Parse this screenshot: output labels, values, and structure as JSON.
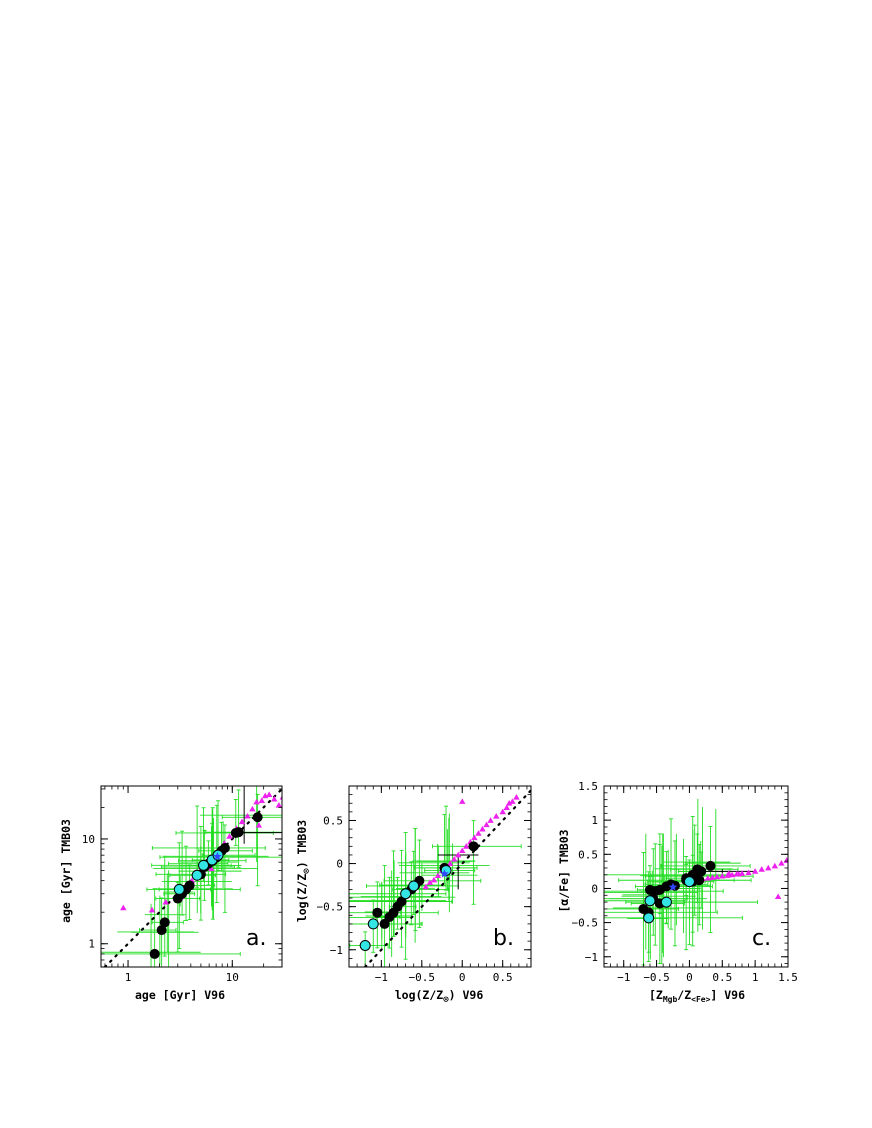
{
  "colors": {
    "errorbar": "#22dd22",
    "errorbar_black": "#000000",
    "black_points": "#000000",
    "cyan_points": "#33e5e5",
    "magenta_points": "#ee22ee",
    "blue_star": "#3344ff",
    "one_to_one": "#000000"
  },
  "chart_data": [
    {
      "id": "a",
      "type": "scatter",
      "panel_tag": "a.",
      "xlabel": "age [Gyr] V96",
      "ylabel": "age [Gyr] TMB03",
      "xscale": "log",
      "yscale": "log",
      "xlim": [
        0.55,
        30
      ],
      "ylim": [
        0.6,
        32
      ],
      "xticks": [
        1,
        10
      ],
      "yticks": [
        1,
        10
      ],
      "one_to_one": true,
      "black": [
        [
          1.8,
          0.8
        ],
        [
          2.1,
          1.35
        ],
        [
          2.25,
          1.6
        ],
        [
          3.0,
          2.7
        ],
        [
          3.3,
          3.0
        ],
        [
          3.6,
          3.3
        ],
        [
          3.9,
          3.6
        ],
        [
          5.0,
          4.6
        ],
        [
          5.4,
          5.4
        ],
        [
          5.9,
          5.8
        ],
        [
          6.5,
          6.2
        ],
        [
          7.1,
          6.7
        ],
        [
          7.9,
          7.7
        ],
        [
          8.5,
          8.2
        ],
        [
          10.8,
          11.4
        ],
        [
          11.5,
          11.6
        ],
        [
          17.5,
          16.1
        ]
      ],
      "cyan": [
        [
          3.1,
          3.3
        ],
        [
          4.6,
          4.5
        ],
        [
          5.3,
          5.6
        ],
        [
          6.4,
          6.3
        ],
        [
          7.3,
          7.0
        ]
      ],
      "magenta": [
        [
          0.9,
          2.2
        ],
        [
          1.7,
          2.1
        ],
        [
          2.3,
          2.5
        ],
        [
          3.2,
          2.8
        ],
        [
          3.6,
          3.3
        ],
        [
          4.1,
          4.0
        ],
        [
          4.5,
          4.8
        ],
        [
          5.1,
          5.5
        ],
        [
          6.0,
          5.9
        ],
        [
          6.3,
          5.2
        ],
        [
          7.0,
          7.3
        ],
        [
          7.5,
          8.0
        ],
        [
          8.4,
          9.1
        ],
        [
          9.4,
          10.6
        ],
        [
          11.0,
          12.6
        ],
        [
          12.4,
          14.6
        ],
        [
          14.0,
          16.5
        ],
        [
          15.6,
          19.3
        ],
        [
          17.1,
          22.5
        ],
        [
          19.2,
          23.2
        ],
        [
          20.7,
          25.8
        ],
        [
          22.6,
          26.5
        ],
        [
          25.3,
          24.0
        ],
        [
          28.0,
          21.0
        ],
        [
          30.5,
          25.0
        ],
        [
          18.0,
          13.5
        ]
      ],
      "blue": [
        [
          7.2,
          6.8
        ]
      ],
      "black_errors": [
        [
          13,
          11.5,
          10,
          40,
          9,
          32
        ]
      ]
    },
    {
      "id": "b",
      "type": "scatter",
      "panel_tag": "b.",
      "xlabel": "log(Z/Z⊙) V96",
      "ylabel": "log(Z/Z⊙) TMB03",
      "xscale": "linear",
      "yscale": "linear",
      "xlim": [
        -1.4,
        0.85
      ],
      "ylim": [
        -1.2,
        0.9
      ],
      "xticks": [
        -1,
        -0.5,
        0,
        0.5
      ],
      "yticks": [
        -1,
        -0.5,
        0,
        0.5
      ],
      "one_to_one": true,
      "black": [
        [
          -1.05,
          -0.57
        ],
        [
          -0.96,
          -0.7
        ],
        [
          -0.9,
          -0.62
        ],
        [
          -0.85,
          -0.57
        ],
        [
          -0.8,
          -0.5
        ],
        [
          -0.75,
          -0.44
        ],
        [
          -0.63,
          -0.3
        ],
        [
          -0.58,
          -0.25
        ],
        [
          -0.53,
          -0.2
        ],
        [
          -0.22,
          -0.05
        ],
        [
          0.14,
          0.2
        ]
      ],
      "cyan": [
        [
          -1.2,
          -0.95
        ],
        [
          -1.1,
          -0.7
        ],
        [
          -0.7,
          -0.35
        ],
        [
          -0.6,
          -0.26
        ],
        [
          -0.2,
          -0.08
        ]
      ],
      "magenta": [
        [
          -0.45,
          -0.27
        ],
        [
          -0.4,
          -0.22
        ],
        [
          -0.35,
          -0.19
        ],
        [
          -0.3,
          -0.14
        ],
        [
          -0.25,
          -0.08
        ],
        [
          -0.2,
          -0.04
        ],
        [
          -0.15,
          0.0
        ],
        [
          -0.1,
          0.05
        ],
        [
          -0.05,
          0.1
        ],
        [
          0.0,
          0.15
        ],
        [
          0.05,
          0.2
        ],
        [
          0.1,
          0.25
        ],
        [
          0.15,
          0.3
        ],
        [
          0.2,
          0.35
        ],
        [
          0.25,
          0.4
        ],
        [
          0.3,
          0.45
        ],
        [
          0.35,
          0.5
        ],
        [
          0.42,
          0.55
        ],
        [
          0.5,
          0.6
        ],
        [
          0.55,
          0.65
        ],
        [
          0.62,
          0.72
        ],
        [
          0.67,
          0.77
        ],
        [
          0.0,
          0.72
        ],
        [
          0.58,
          0.7
        ]
      ],
      "blue": [
        [
          -0.22,
          -0.12
        ]
      ],
      "black_errors": [
        [
          -0.05,
          0.1,
          -0.3,
          0.2,
          -0.3,
          0.1
        ]
      ]
    },
    {
      "id": "c",
      "type": "scatter",
      "panel_tag": "c.",
      "xlabel": "[ZMgb/Z<Fe>] V96",
      "ylabel": "[α/Fe] TMB03",
      "xscale": "linear",
      "yscale": "linear",
      "xlim": [
        -1.3,
        1.5
      ],
      "ylim": [
        -1.15,
        1.5
      ],
      "xticks": [
        -1,
        -0.5,
        0,
        0.5,
        1,
        1.5
      ],
      "yticks": [
        -1,
        -0.5,
        0,
        0.5,
        1,
        1.5
      ],
      "one_to_one": false,
      "black": [
        [
          -0.7,
          -0.3
        ],
        [
          -0.62,
          -0.35
        ],
        [
          -0.6,
          -0.02
        ],
        [
          -0.52,
          -0.04
        ],
        [
          -0.45,
          -0.02
        ],
        [
          -0.45,
          -0.22
        ],
        [
          -0.35,
          0.03
        ],
        [
          -0.28,
          0.06
        ],
        [
          -0.22,
          0.04
        ],
        [
          -0.05,
          0.12
        ],
        [
          0.05,
          0.2
        ],
        [
          0.12,
          0.28
        ],
        [
          0.18,
          0.25
        ],
        [
          0.32,
          0.33
        ],
        [
          0.15,
          0.12
        ],
        [
          0.05,
          0.1
        ],
        [
          -0.05,
          0.15
        ],
        [
          0.08,
          0.18
        ],
        [
          -0.55,
          -0.15
        ]
      ],
      "cyan": [
        [
          -0.62,
          -0.43
        ],
        [
          -0.35,
          -0.2
        ],
        [
          -0.6,
          -0.18
        ],
        [
          0.0,
          0.1
        ]
      ],
      "magenta": [
        [
          0.05,
          0.1
        ],
        [
          0.12,
          0.12
        ],
        [
          0.2,
          0.14
        ],
        [
          0.28,
          0.15
        ],
        [
          0.35,
          0.16
        ],
        [
          0.42,
          0.17
        ],
        [
          0.5,
          0.18
        ],
        [
          0.58,
          0.19
        ],
        [
          0.65,
          0.2
        ],
        [
          0.72,
          0.21
        ],
        [
          0.8,
          0.22
        ],
        [
          0.9,
          0.23
        ],
        [
          1.0,
          0.25
        ],
        [
          1.1,
          0.28
        ],
        [
          1.2,
          0.3
        ],
        [
          1.3,
          0.33
        ],
        [
          1.4,
          0.37
        ],
        [
          1.48,
          0.41
        ],
        [
          1.35,
          -0.12
        ],
        [
          0.6,
          0.22
        ],
        [
          0.75,
          0.21
        ]
      ],
      "blue": [
        [
          -0.25,
          0.02
        ]
      ],
      "black_errors": [
        [
          0.5,
          0.25,
          0.2,
          1.0,
          0.22,
          0.28
        ]
      ]
    }
  ]
}
